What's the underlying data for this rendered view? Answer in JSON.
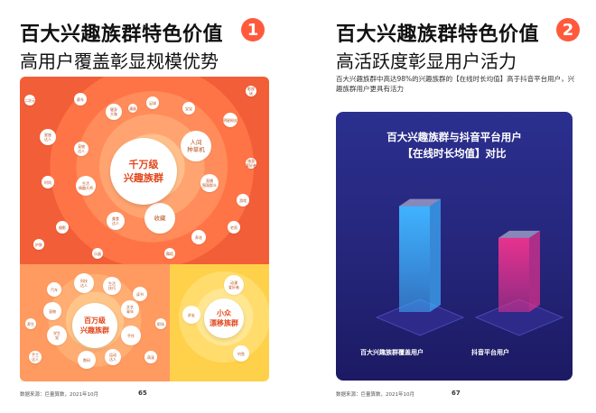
{
  "left_page": {
    "title": "百大兴趣族群特色价值",
    "number": "1",
    "subtitle": "高用户覆盖彰显规模优势",
    "hub_main": "千万级\n兴趣族群",
    "hub_mid": "百万级\n兴趣族群",
    "hub_small": "小众\n漂移族群",
    "bubbles_top": [
      "赛车",
      "健身\n大咖",
      "足球",
      "宝宝",
      "星座\n达人",
      "宠物\n达人",
      "人间\n种草机",
      "明星粉丝",
      "生活\n情趣大师",
      "时尚",
      "直播\n围观群众",
      "收藏",
      "美食\n达人",
      "旅游\n爱好者",
      "游戏",
      "摄影",
      "宅男",
      "二次元",
      "护肤",
      "养花",
      "漫画",
      "影视\n迷",
      "乐器",
      "舞蹈"
    ],
    "bubbles_bl": [
      "科技\n达人",
      "生活\n技巧",
      "汽车",
      "读书",
      "宠物",
      "文艺\n青年",
      "学生\n党",
      "手作",
      "数码",
      "运动\n达人",
      "手工\n达人",
      "萌宠",
      "养生",
      "职场"
    ],
    "bubbles_br": [
      "动漫\n爱好者",
      "驴友",
      "钓鱼"
    ],
    "footer_source": "数据来源：巨量算数，2021年10月",
    "page_number": "65"
  },
  "right_page": {
    "title": "百大兴趣族群特色价值",
    "number": "2",
    "subtitle": "高活跃度彰显用户活力",
    "description": "百大兴趣族群中高达98%的兴趣族群的【在线时长均值】高于抖音平台用户，兴趣族群用户更具有活力",
    "footer_source": "数据来源：巨量算数，2021年10月",
    "page_number": "67"
  },
  "chart_data": {
    "type": "bar",
    "title": "百大兴趣族群与抖音平台用户",
    "subtitle": "【在线时长均值】对比",
    "categories": [
      "百大兴趣族群覆盖用户",
      "抖音平台用户"
    ],
    "values": [
      100,
      70
    ],
    "ylim": [
      0,
      115
    ],
    "grid": false,
    "colors": [
      "#3fb3ff",
      "#e6328e"
    ]
  }
}
